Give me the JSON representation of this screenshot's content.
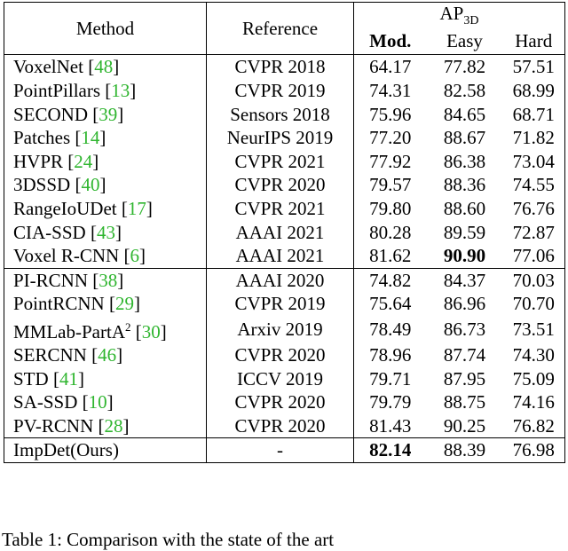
{
  "header": {
    "method": "Method",
    "reference": "Reference",
    "ap": "AP",
    "ap_sub": "3D",
    "mod": "Mod.",
    "easy": "Easy",
    "hard": "Hard"
  },
  "groups": [
    [
      {
        "method": "VoxelNet",
        "cite": "48",
        "reference": "CVPR 2018",
        "mod": "64.17",
        "easy": "77.82",
        "hard": "57.51"
      },
      {
        "method": "PointPillars",
        "cite": "13",
        "reference": "CVPR 2019",
        "mod": "74.31",
        "easy": "82.58",
        "hard": "68.99"
      },
      {
        "method": "SECOND",
        "cite": "39",
        "reference": "Sensors 2018",
        "mod": "75.96",
        "easy": "84.65",
        "hard": "68.71"
      },
      {
        "method": "Patches",
        "cite": "14",
        "reference": "NeurIPS 2019",
        "mod": "77.20",
        "easy": "88.67",
        "hard": "71.82"
      },
      {
        "method": "HVPR",
        "cite": "24",
        "reference": "CVPR 2021",
        "mod": "77.92",
        "easy": "86.38",
        "hard": "73.04"
      },
      {
        "method": "3DSSD",
        "cite": "40",
        "reference": "CVPR 2020",
        "mod": "79.57",
        "easy": "88.36",
        "hard": "74.55"
      },
      {
        "method": "RangeIoUDet",
        "cite": "17",
        "reference": "CVPR 2021",
        "mod": "79.80",
        "easy": "88.60",
        "hard": "76.76"
      },
      {
        "method": "CIA-SSD",
        "cite": "43",
        "reference": "AAAI 2021",
        "mod": "80.28",
        "easy": "89.59",
        "hard": "72.87"
      },
      {
        "method": "Voxel R-CNN",
        "cite": "6",
        "reference": "AAAI 2021",
        "mod": "81.62",
        "easy": "90.90",
        "hard": "77.06",
        "bold": "easy"
      }
    ],
    [
      {
        "method": "PI-RCNN",
        "cite": "38",
        "reference": "AAAI 2020",
        "mod": "74.82",
        "easy": "84.37",
        "hard": "70.03"
      },
      {
        "method": "PointRCNN",
        "cite": "29",
        "reference": "CVPR 2019",
        "mod": "75.64",
        "easy": "86.96",
        "hard": "70.70"
      },
      {
        "method": "MMLab-PartA",
        "sup": "2",
        "cite": "30",
        "reference": "Arxiv 2019",
        "mod": "78.49",
        "easy": "86.73",
        "hard": "73.51"
      },
      {
        "method": "SERCNN",
        "cite": "46",
        "reference": "CVPR 2020",
        "mod": "78.96",
        "easy": "87.74",
        "hard": "74.30"
      },
      {
        "method": "STD",
        "cite": "41",
        "reference": "ICCV 2019",
        "mod": "79.71",
        "easy": "87.95",
        "hard": "75.09"
      },
      {
        "method": "SA-SSD",
        "cite": "10",
        "reference": "CVPR 2020",
        "mod": "79.79",
        "easy": "88.75",
        "hard": "74.16"
      },
      {
        "method": "PV-RCNN",
        "cite": "28",
        "reference": "CVPR 2020",
        "mod": "81.43",
        "easy": "90.25",
        "hard": "76.82"
      }
    ],
    [
      {
        "method": "ImpDet(Ours)",
        "reference": "-",
        "mod": "82.14",
        "easy": "88.39",
        "hard": "76.98",
        "bold": "mod"
      }
    ]
  ],
  "caption": "Table 1: Comparison with the state of the art"
}
